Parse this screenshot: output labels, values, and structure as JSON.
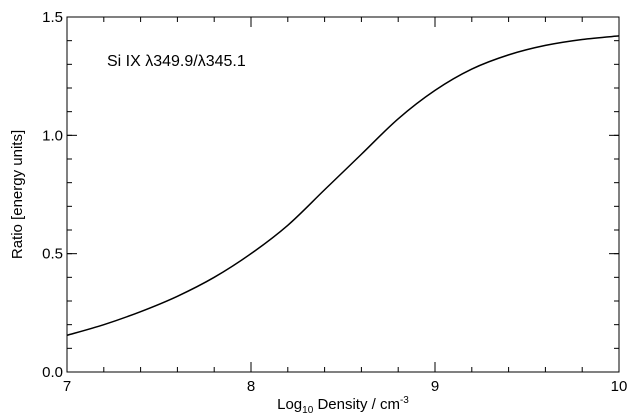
{
  "chart_data": {
    "type": "line",
    "annotation": {
      "prefix": "Si IX ",
      "lambda1": "λ",
      "num1": "349.9/",
      "lambda2": "λ",
      "num2": "345.1"
    },
    "xlabel": {
      "main": "Log",
      "main_sub": "10",
      "rest": " Density / cm",
      "sup": "-3"
    },
    "ylabel": "Ratio [energy units]",
    "xlim": [
      7,
      10
    ],
    "ylim": [
      0,
      1.5
    ],
    "xticks": [
      {
        "value": 7,
        "label": "7"
      },
      {
        "value": 8,
        "label": "8"
      },
      {
        "value": 9,
        "label": "9"
      },
      {
        "value": 10,
        "label": "10"
      }
    ],
    "yticks": [
      {
        "value": 0.0,
        "label": "0.0"
      },
      {
        "value": 0.5,
        "label": "0.5"
      },
      {
        "value": 1.0,
        "label": "1.0"
      },
      {
        "value": 1.5,
        "label": "1.5"
      }
    ],
    "x_minor_step": 0.2,
    "y_minor_step": 0.1,
    "series": [
      {
        "color": "#000000",
        "x": [
          7.0,
          7.2,
          7.4,
          7.6,
          7.8,
          8.0,
          8.2,
          8.4,
          8.6,
          8.8,
          9.0,
          9.2,
          9.4,
          9.6,
          9.8,
          10.0
        ],
        "y": [
          0.155,
          0.2,
          0.255,
          0.32,
          0.4,
          0.5,
          0.62,
          0.77,
          0.92,
          1.07,
          1.19,
          1.28,
          1.34,
          1.38,
          1.405,
          1.42
        ]
      }
    ]
  }
}
